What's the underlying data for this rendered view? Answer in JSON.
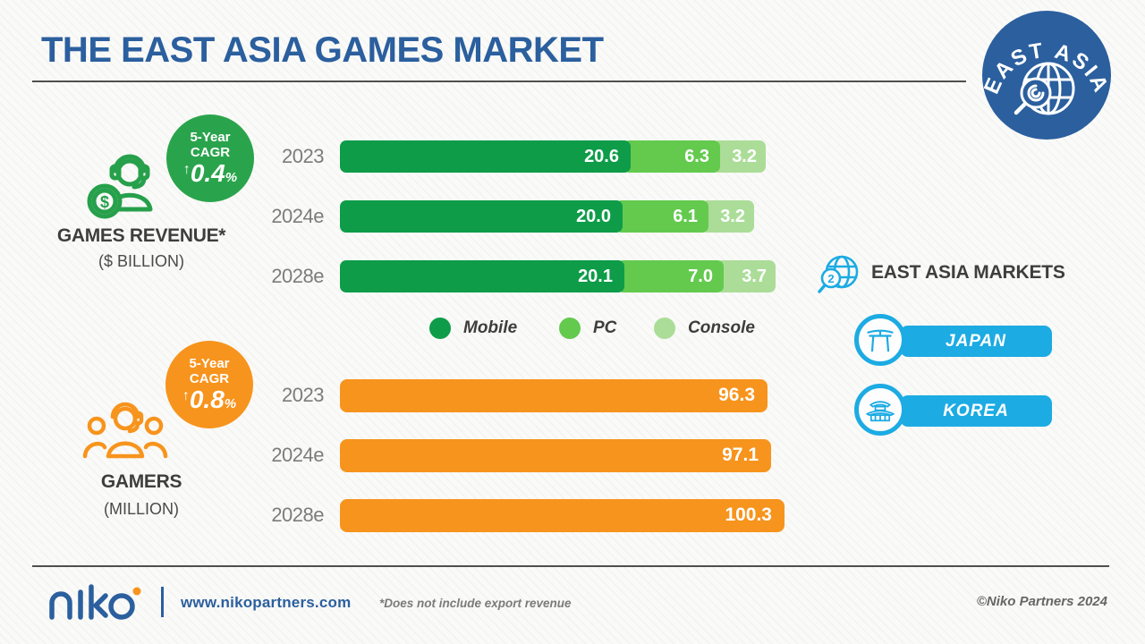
{
  "title": "THE EAST ASIA GAMES MARKET",
  "top_badge": {
    "label": "EAST ASIA"
  },
  "colors": {
    "title_blue": "#2b5f9e",
    "badge_green": "#2aa44c",
    "mobile_green": "#0e9c49",
    "pc_green": "#63ca4e",
    "console_green": "#abdd98",
    "orange": "#f7941d",
    "market_blue": "#1cabe3"
  },
  "revenue_section": {
    "label": "GAMES REVENUE*",
    "unit": "($ BILLION)",
    "cagr": {
      "period": "5-Year",
      "metric": "CAGR",
      "arrow": "↑",
      "value": "0.4",
      "percent": "%"
    }
  },
  "gamers_section": {
    "label": "GAMERS",
    "unit": "(MILLION)",
    "cagr": {
      "period": "5-Year",
      "metric": "CAGR",
      "arrow": "↑",
      "value": "0.8",
      "percent": "%"
    }
  },
  "markets": {
    "heading": "EAST ASIA MARKETS",
    "items": [
      {
        "name": "JAPAN",
        "icon": "torii-gate"
      },
      {
        "name": "KOREA",
        "icon": "korean-palace"
      }
    ]
  },
  "footer": {
    "url": "www.nikopartners.com",
    "footnote": "*Does not include export revenue",
    "copyright": "©Niko Partners 2024"
  },
  "chart_data": [
    {
      "type": "bar",
      "stacked": true,
      "title": "GAMES REVENUE* ($ BILLION)",
      "cagr_5yr": "0.4%",
      "categories": [
        "2023",
        "2024e",
        "2028e"
      ],
      "series": [
        {
          "name": "Mobile",
          "color": "#0e9c49",
          "values": [
            20.6,
            20.0,
            20.1
          ],
          "labels": [
            "20.6",
            "20.0",
            "20.1"
          ]
        },
        {
          "name": "PC",
          "color": "#63ca4e",
          "values": [
            6.3,
            6.1,
            7.0
          ],
          "labels": [
            "6.3",
            "6.1",
            "7.0"
          ]
        },
        {
          "name": "Console",
          "color": "#abdd98",
          "values": [
            3.2,
            3.2,
            3.7
          ],
          "labels": [
            "3.2",
            "3.2",
            "3.7"
          ]
        }
      ],
      "legend_position": "bottom",
      "orientation": "horizontal"
    },
    {
      "type": "bar",
      "stacked": false,
      "title": "GAMERS (MILLION)",
      "cagr_5yr": "0.8%",
      "categories": [
        "2023",
        "2024e",
        "2028e"
      ],
      "values": [
        96.3,
        97.1,
        100.3
      ],
      "labels": [
        "96.3",
        "97.1",
        "100.3"
      ],
      "color": "#f7941d",
      "orientation": "horizontal"
    }
  ]
}
